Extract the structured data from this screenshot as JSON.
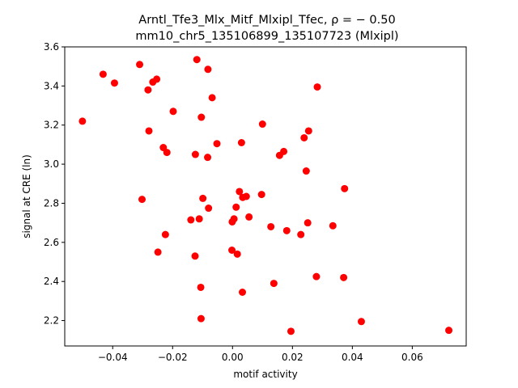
{
  "chart_data": {
    "type": "scatter",
    "title_line1": "Arntl_Tfe3_Mlx_Mitf_Mlxipl_Tfec, ρ = − 0.50",
    "title_line2": "mm10_chr5_135106899_135107723 (Mlxipl)",
    "xlabel": "motif activity",
    "ylabel": "signal at CRE (ln)",
    "xlim": [
      -0.056,
      0.078
    ],
    "ylim": [
      2.07,
      3.6
    ],
    "xticks": [
      {
        "v": -0.04,
        "label": "−0.04"
      },
      {
        "v": -0.02,
        "label": "−0.02"
      },
      {
        "v": 0.0,
        "label": "0.00"
      },
      {
        "v": 0.02,
        "label": "0.02"
      },
      {
        "v": 0.04,
        "label": "0.04"
      },
      {
        "v": 0.06,
        "label": "0.06"
      }
    ],
    "yticks": [
      {
        "v": 2.2,
        "label": "2.2"
      },
      {
        "v": 2.4,
        "label": "2.4"
      },
      {
        "v": 2.6,
        "label": "2.6"
      },
      {
        "v": 2.8,
        "label": "2.8"
      },
      {
        "v": 3.0,
        "label": "3.0"
      },
      {
        "v": 3.2,
        "label": "3.2"
      },
      {
        "v": 3.4,
        "label": "3.4"
      },
      {
        "v": 3.6,
        "label": "3.6"
      }
    ],
    "marker_color": "#ff0000",
    "grid": false,
    "points": [
      {
        "x": -0.0501,
        "y": 3.22
      },
      {
        "x": -0.0432,
        "y": 3.46
      },
      {
        "x": -0.0394,
        "y": 3.415
      },
      {
        "x": -0.031,
        "y": 3.51
      },
      {
        "x": -0.0282,
        "y": 3.38
      },
      {
        "x": -0.0266,
        "y": 3.42
      },
      {
        "x": -0.0253,
        "y": 3.435
      },
      {
        "x": -0.0279,
        "y": 3.17
      },
      {
        "x": -0.0198,
        "y": 3.27
      },
      {
        "x": -0.0231,
        "y": 3.085
      },
      {
        "x": -0.0219,
        "y": 3.06
      },
      {
        "x": -0.0302,
        "y": 2.82
      },
      {
        "x": -0.0224,
        "y": 2.64
      },
      {
        "x": -0.0249,
        "y": 2.55
      },
      {
        "x": -0.0119,
        "y": 3.535
      },
      {
        "x": -0.0082,
        "y": 3.485
      },
      {
        "x": -0.0068,
        "y": 3.34
      },
      {
        "x": -0.0104,
        "y": 3.24
      },
      {
        "x": -0.0052,
        "y": 3.105
      },
      {
        "x": -0.0124,
        "y": 3.05
      },
      {
        "x": -0.0083,
        "y": 3.035
      },
      {
        "x": -0.0099,
        "y": 2.825
      },
      {
        "x": -0.008,
        "y": 2.775
      },
      {
        "x": -0.0139,
        "y": 2.715
      },
      {
        "x": -0.0111,
        "y": 2.72
      },
      {
        "x": -0.0125,
        "y": 2.53
      },
      {
        "x": -0.0106,
        "y": 2.37
      },
      {
        "x": -0.0105,
        "y": 2.21
      },
      {
        "x": 0.01,
        "y": 3.205
      },
      {
        "x": 0.003,
        "y": 3.11
      },
      {
        "x": 0.0171,
        "y": 3.065
      },
      {
        "x": 0.0157,
        "y": 3.045
      },
      {
        "x": 0.0023,
        "y": 2.86
      },
      {
        "x": 0.0034,
        "y": 2.83
      },
      {
        "x": 0.0046,
        "y": 2.835
      },
      {
        "x": 0.0097,
        "y": 2.845
      },
      {
        "x": 0.0012,
        "y": 2.78
      },
      {
        "x": 0.0055,
        "y": 2.73
      },
      {
        "x": 0.0005,
        "y": 2.72
      },
      {
        "x": -0.0001,
        "y": 2.705
      },
      {
        "x": 0.0128,
        "y": 2.68
      },
      {
        "x": 0.0181,
        "y": 2.66
      },
      {
        "x": -0.0002,
        "y": 2.56
      },
      {
        "x": 0.0016,
        "y": 2.54
      },
      {
        "x": 0.0138,
        "y": 2.39
      },
      {
        "x": 0.0033,
        "y": 2.345
      },
      {
        "x": 0.0195,
        "y": 2.145
      },
      {
        "x": 0.0283,
        "y": 3.395
      },
      {
        "x": 0.0254,
        "y": 3.17
      },
      {
        "x": 0.0239,
        "y": 3.135
      },
      {
        "x": 0.0246,
        "y": 2.965
      },
      {
        "x": 0.0251,
        "y": 2.7
      },
      {
        "x": 0.0228,
        "y": 2.64
      },
      {
        "x": 0.028,
        "y": 2.425
      },
      {
        "x": 0.0374,
        "y": 2.875
      },
      {
        "x": 0.0335,
        "y": 2.685
      },
      {
        "x": 0.0371,
        "y": 2.42
      },
      {
        "x": 0.043,
        "y": 2.195
      },
      {
        "x": 0.0722,
        "y": 2.15
      }
    ]
  }
}
